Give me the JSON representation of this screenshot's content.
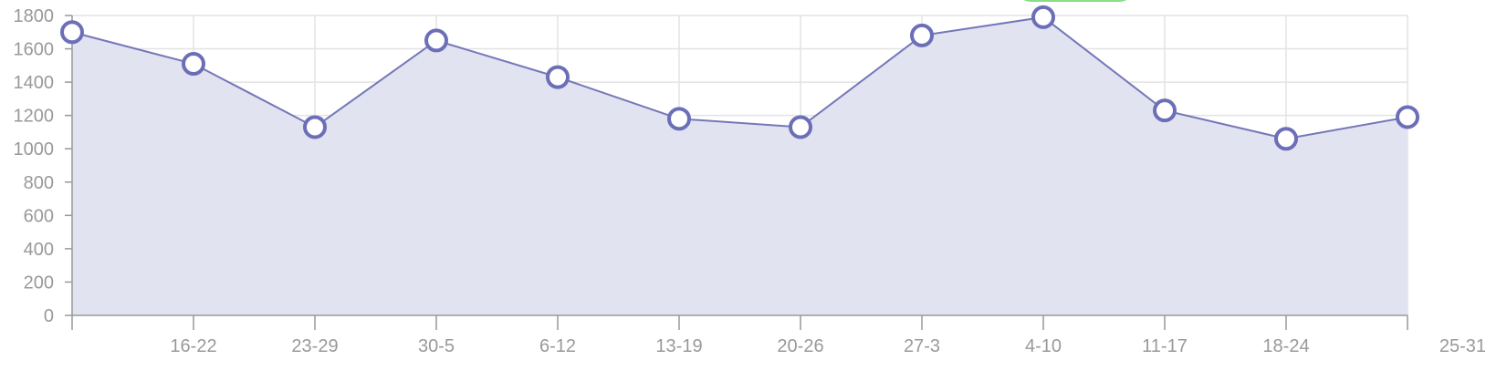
{
  "chart_data": {
    "type": "area",
    "categories": [
      "",
      "16-22",
      "23-29",
      "30-5",
      "6-12",
      "13-19",
      "20-26",
      "27-3",
      "4-10",
      "11-17",
      "18-24",
      "25-31"
    ],
    "series": [
      {
        "values": [
          1700,
          1510,
          1130,
          1650,
          1430,
          1180,
          1130,
          1680,
          1790,
          1230,
          1060,
          1190
        ]
      }
    ],
    "ylim": [
      0,
      1800
    ],
    "yticks": [
      0,
      200,
      400,
      600,
      800,
      1000,
      1200,
      1400,
      1600,
      1800
    ],
    "grid": true,
    "highlight_index": 8,
    "colors": {
      "line": "#7577b8",
      "fill": "#e1e3f1",
      "point_stroke": "#6c6eb7",
      "point_fill": "#ffffff",
      "grid": "#e3e3e3",
      "tick_text": "#999999",
      "highlight": "#88dd88"
    },
    "title": "",
    "xlabel": "",
    "ylabel": ""
  }
}
